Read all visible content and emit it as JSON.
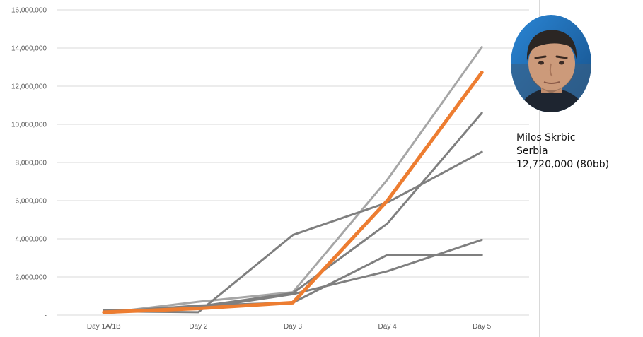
{
  "chart_data": {
    "type": "line",
    "categories": [
      "Day 1A/1B",
      "Day 2",
      "Day 3",
      "Day 4",
      "Day 5"
    ],
    "y_tick_labels": [
      "-",
      "2,000,000",
      "4,000,000",
      "6,000,000",
      "8,000,000",
      "10,000,000",
      "12,000,000",
      "14,000,000",
      "16,000,000"
    ],
    "ylim": [
      0,
      16000000
    ],
    "grid": true,
    "series": [
      {
        "values": [
          100000,
          700000,
          1200000,
          7100000,
          14050000
        ],
        "color": "#a6a6a6",
        "highlight": false
      },
      {
        "values": [
          200000,
          150000,
          4200000,
          5900000,
          8550000
        ],
        "color": "#7f7f7f",
        "highlight": false
      },
      {
        "values": [
          100000,
          450000,
          1150000,
          4800000,
          10600000
        ],
        "color": "#7f7f7f",
        "highlight": false
      },
      {
        "values": [
          150000,
          500000,
          650000,
          3150000,
          3150000
        ],
        "color": "#7f7f7f",
        "highlight": false
      },
      {
        "values": [
          250000,
          350000,
          1100000,
          2300000,
          3950000
        ],
        "color": "#7f7f7f",
        "highlight": false
      },
      {
        "values": [
          150000,
          350000,
          650000,
          6000000,
          12720000
        ],
        "color": "#ed7d31",
        "highlight": true
      }
    ]
  },
  "player": {
    "name": "Milos Skrbic",
    "country": "Serbia",
    "chips": "12,720,000 (80bb)"
  },
  "colors": {
    "highlight_line": "#ed7d31",
    "other_lines": "#7f7f7f",
    "grid": "#d9d9d9",
    "photo_background": "#1f6fb5"
  },
  "photo_icon": "player-portrait"
}
